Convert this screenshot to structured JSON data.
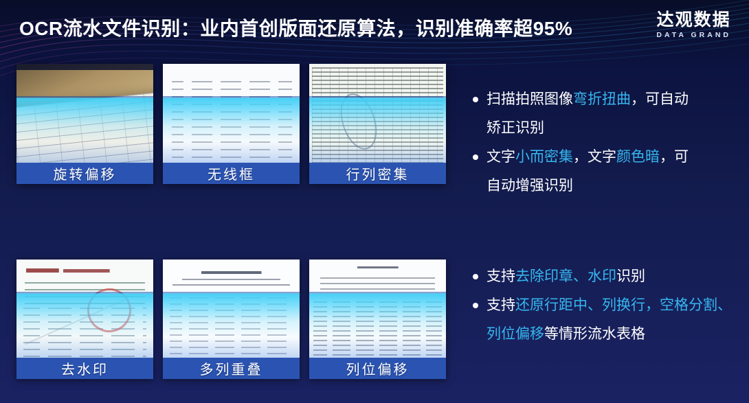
{
  "theme": {
    "background_top": "#080d28",
    "background_mid": "#131c4e",
    "background_bottom": "#1a2263",
    "accent": "#36b7f0",
    "caption_bar": "#2b54b2",
    "scan_line": "#45cdf2",
    "text": "#ffffff",
    "wave_left": "#b83fa6",
    "wave_right": "#2fc0e8"
  },
  "header": {
    "title": "OCR流水文件识别：业内首创版面还原算法，识别准确率超95%",
    "logo": {
      "name": "达观数据",
      "tagline": "DATA GRAND"
    }
  },
  "gallery": {
    "items": [
      {
        "caption": "旋转偏移",
        "description": "photo of tilted rotated bank statement page"
      },
      {
        "caption": "无线框",
        "description": "statement rows without table borders"
      },
      {
        "caption": "行列密集",
        "description": "dense rows and columns table with round stamp"
      },
      {
        "caption": "去水印",
        "description": "南京银行 交易明细清单 with red seal and watermark"
      },
      {
        "caption": "多列重叠",
        "description": "statement with overlapping multiple columns"
      },
      {
        "caption": "列位偏移",
        "description": "statement with shifted column positions"
      }
    ]
  },
  "bullets": {
    "top": [
      {
        "segments": [
          {
            "text": "扫描拍照图像",
            "highlight": false
          },
          {
            "text": "弯折扭曲",
            "highlight": true
          },
          {
            "text": "，可自动矫正识别",
            "highlight": false
          }
        ]
      },
      {
        "segments": [
          {
            "text": "文字",
            "highlight": false
          },
          {
            "text": "小而密集",
            "highlight": true
          },
          {
            "text": "，文字",
            "highlight": false
          },
          {
            "text": "颜色暗",
            "highlight": true
          },
          {
            "text": "，可自动增强识别",
            "highlight": false
          }
        ]
      }
    ],
    "bottom": [
      {
        "segments": [
          {
            "text": "支持",
            "highlight": false
          },
          {
            "text": "去除印章、水印",
            "highlight": true
          },
          {
            "text": "识别",
            "highlight": false
          }
        ]
      },
      {
        "segments": [
          {
            "text": "支持",
            "highlight": false
          },
          {
            "text": "还原行距中、列换行，空格分割、列位偏移",
            "highlight": true
          },
          {
            "text": "等情形流水表格",
            "highlight": false
          }
        ]
      }
    ]
  }
}
